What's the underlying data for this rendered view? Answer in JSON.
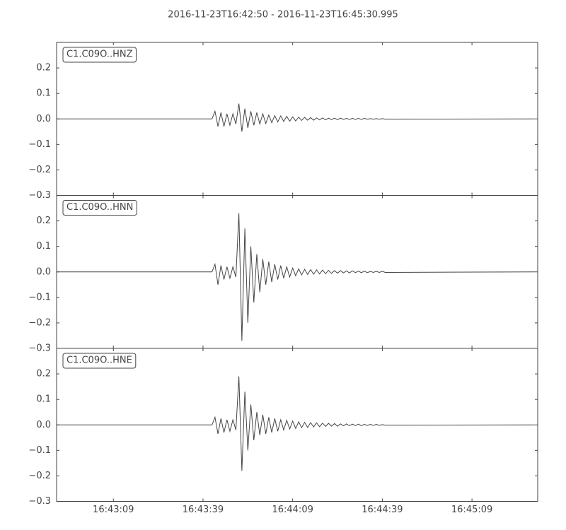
{
  "chart_data": [
    {
      "type": "line",
      "title": "2016-11-23T16:42:50  -  2016-11-23T16:45:30.995",
      "label": "C1.C09O..HNZ",
      "color": "#444444",
      "xlim": [
        "16:42:50",
        "16:45:30.995"
      ],
      "ylim": [
        -0.3,
        0.3
      ],
      "yticks": [
        {
          "value": -0.3,
          "label": "−0.3"
        },
        {
          "value": -0.2,
          "label": "−0.2"
        },
        {
          "value": -0.1,
          "label": "−0.1"
        },
        {
          "value": 0,
          "label": "0.0"
        },
        0.1,
        0.2
      ],
      "x": [
        "16:42:50",
        "16:43:42",
        "16:43:43",
        "16:43:44",
        "16:43:45",
        "16:43:46",
        "16:43:47",
        "16:43:48",
        "16:43:49",
        "16:43:50",
        "16:43:51",
        "16:43:52",
        "16:43:53",
        "16:43:54",
        "16:43:55",
        "16:43:56",
        "16:43:57",
        "16:43:58",
        "16:43:59",
        "16:44:00",
        "16:44:01",
        "16:44:02",
        "16:44:03",
        "16:44:04",
        "16:44:05",
        "16:44:06",
        "16:44:07",
        "16:44:08",
        "16:44:09",
        "16:44:10",
        "16:44:11",
        "16:44:12",
        "16:44:13",
        "16:44:14",
        "16:44:15",
        "16:44:16",
        "16:44:17",
        "16:44:18",
        "16:44:19",
        "16:44:20",
        "16:44:21",
        "16:44:22",
        "16:44:23",
        "16:44:24",
        "16:44:25",
        "16:44:26",
        "16:44:27",
        "16:44:28",
        "16:44:29",
        "16:44:30",
        "16:44:31",
        "16:44:32",
        "16:44:33",
        "16:44:34",
        "16:44:35",
        "16:44:36",
        "16:44:37",
        "16:44:38",
        "16:44:39",
        "16:44:40",
        "16:45:30"
      ],
      "values": [
        0,
        0,
        0.03,
        -0.03,
        0.025,
        -0.03,
        0.02,
        -0.025,
        0.02,
        -0.02,
        0.06,
        -0.05,
        0.04,
        -0.035,
        0.03,
        -0.025,
        0.025,
        -0.02,
        0.02,
        -0.018,
        0.015,
        -0.015,
        0.013,
        -0.012,
        0.012,
        -0.01,
        0.01,
        -0.009,
        0.008,
        -0.008,
        0.007,
        -0.006,
        0.006,
        -0.005,
        0.005,
        -0.005,
        0.004,
        -0.004,
        0.004,
        -0.004,
        0.003,
        -0.003,
        0.003,
        -0.003,
        0.003,
        -0.002,
        0.002,
        -0.002,
        0.002,
        -0.002,
        0.002,
        -0.002,
        0.002,
        -0.001,
        0.001,
        -0.001,
        0.001,
        -0.001,
        0.001,
        -0.001,
        0
      ]
    },
    {
      "type": "line",
      "label": "C1.C09O..HNN",
      "color": "#444444",
      "xlim": [
        "16:42:50",
        "16:45:30.995"
      ],
      "ylim": [
        -0.3,
        0.3
      ],
      "yticks": [
        {
          "value": -0.3,
          "label": "−0.3"
        },
        {
          "value": -0.2,
          "label": "−0.2"
        },
        {
          "value": -0.1,
          "label": "−0.1"
        },
        {
          "value": 0,
          "label": "0.0"
        },
        0.1,
        0.2
      ],
      "x": [
        "16:42:50",
        "16:43:42",
        "16:43:43",
        "16:43:44",
        "16:43:45",
        "16:43:46",
        "16:43:47",
        "16:43:48",
        "16:43:49",
        "16:43:50",
        "16:43:51",
        "16:43:52",
        "16:43:53",
        "16:43:54",
        "16:43:55",
        "16:43:56",
        "16:43:57",
        "16:43:58",
        "16:43:59",
        "16:44:00",
        "16:44:01",
        "16:44:02",
        "16:44:03",
        "16:44:04",
        "16:44:05",
        "16:44:06",
        "16:44:07",
        "16:44:08",
        "16:44:09",
        "16:44:10",
        "16:44:11",
        "16:44:12",
        "16:44:13",
        "16:44:14",
        "16:44:15",
        "16:44:16",
        "16:44:17",
        "16:44:18",
        "16:44:19",
        "16:44:20",
        "16:44:21",
        "16:44:22",
        "16:44:23",
        "16:44:24",
        "16:44:25",
        "16:44:26",
        "16:44:27",
        "16:44:28",
        "16:44:29",
        "16:44:30",
        "16:44:31",
        "16:44:32",
        "16:44:33",
        "16:44:34",
        "16:44:35",
        "16:44:36",
        "16:44:37",
        "16:44:38",
        "16:44:39",
        "16:44:40",
        "16:45:30"
      ],
      "values": [
        0,
        0,
        0.03,
        -0.05,
        0.025,
        -0.03,
        0.02,
        -0.025,
        0.02,
        -0.02,
        0.23,
        -0.27,
        0.17,
        -0.2,
        0.1,
        -0.12,
        0.07,
        -0.08,
        0.05,
        -0.05,
        0.04,
        -0.04,
        0.03,
        -0.03,
        0.025,
        -0.025,
        0.02,
        -0.02,
        0.015,
        -0.015,
        0.012,
        -0.012,
        0.01,
        -0.01,
        0.009,
        -0.009,
        0.008,
        -0.008,
        0.007,
        -0.007,
        0.006,
        -0.006,
        0.005,
        -0.005,
        0.005,
        -0.004,
        0.004,
        -0.004,
        0.004,
        -0.003,
        0.003,
        -0.003,
        0.003,
        -0.003,
        0.002,
        -0.002,
        0.002,
        -0.002,
        0.002,
        -0.002,
        0
      ]
    },
    {
      "type": "line",
      "label": "C1.C09O..HNE",
      "color": "#444444",
      "xlim": [
        "16:42:50",
        "16:45:30.995"
      ],
      "xticks": [
        "16:43:09",
        "16:43:39",
        "16:44:09",
        "16:44:39",
        "16:45:09"
      ],
      "ylim": [
        -0.3,
        0.3
      ],
      "yticks": [
        {
          "value": -0.3,
          "label": "−0.3"
        },
        {
          "value": -0.2,
          "label": "−0.2"
        },
        {
          "value": -0.1,
          "label": "−0.1"
        },
        {
          "value": 0,
          "label": "0.0"
        },
        0.1,
        0.2
      ],
      "x": [
        "16:42:50",
        "16:43:42",
        "16:43:43",
        "16:43:44",
        "16:43:45",
        "16:43:46",
        "16:43:47",
        "16:43:48",
        "16:43:49",
        "16:43:50",
        "16:43:51",
        "16:43:52",
        "16:43:53",
        "16:43:54",
        "16:43:55",
        "16:43:56",
        "16:43:57",
        "16:43:58",
        "16:43:59",
        "16:44:00",
        "16:44:01",
        "16:44:02",
        "16:44:03",
        "16:44:04",
        "16:44:05",
        "16:44:06",
        "16:44:07",
        "16:44:08",
        "16:44:09",
        "16:44:10",
        "16:44:11",
        "16:44:12",
        "16:44:13",
        "16:44:14",
        "16:44:15",
        "16:44:16",
        "16:44:17",
        "16:44:18",
        "16:44:19",
        "16:44:20",
        "16:44:21",
        "16:44:22",
        "16:44:23",
        "16:44:24",
        "16:44:25",
        "16:44:26",
        "16:44:27",
        "16:44:28",
        "16:44:29",
        "16:44:30",
        "16:44:31",
        "16:44:32",
        "16:44:33",
        "16:44:34",
        "16:44:35",
        "16:44:36",
        "16:44:37",
        "16:44:38",
        "16:44:39",
        "16:44:40",
        "16:45:30"
      ],
      "values": [
        0,
        0,
        0.03,
        -0.035,
        0.025,
        -0.03,
        0.02,
        -0.025,
        0.02,
        -0.02,
        0.19,
        -0.18,
        0.13,
        -0.1,
        0.08,
        -0.06,
        0.05,
        -0.04,
        0.04,
        -0.035,
        0.03,
        -0.03,
        0.025,
        -0.025,
        0.02,
        -0.02,
        0.018,
        -0.016,
        0.015,
        -0.014,
        0.012,
        -0.011,
        0.01,
        -0.01,
        0.009,
        -0.008,
        0.008,
        -0.007,
        0.007,
        -0.006,
        0.006,
        -0.005,
        0.005,
        -0.005,
        0.004,
        -0.004,
        0.004,
        -0.003,
        0.003,
        -0.003,
        0.003,
        -0.003,
        0.002,
        -0.002,
        0.002,
        -0.002,
        0.002,
        -0.002,
        0.001,
        -0.001,
        0
      ]
    }
  ]
}
